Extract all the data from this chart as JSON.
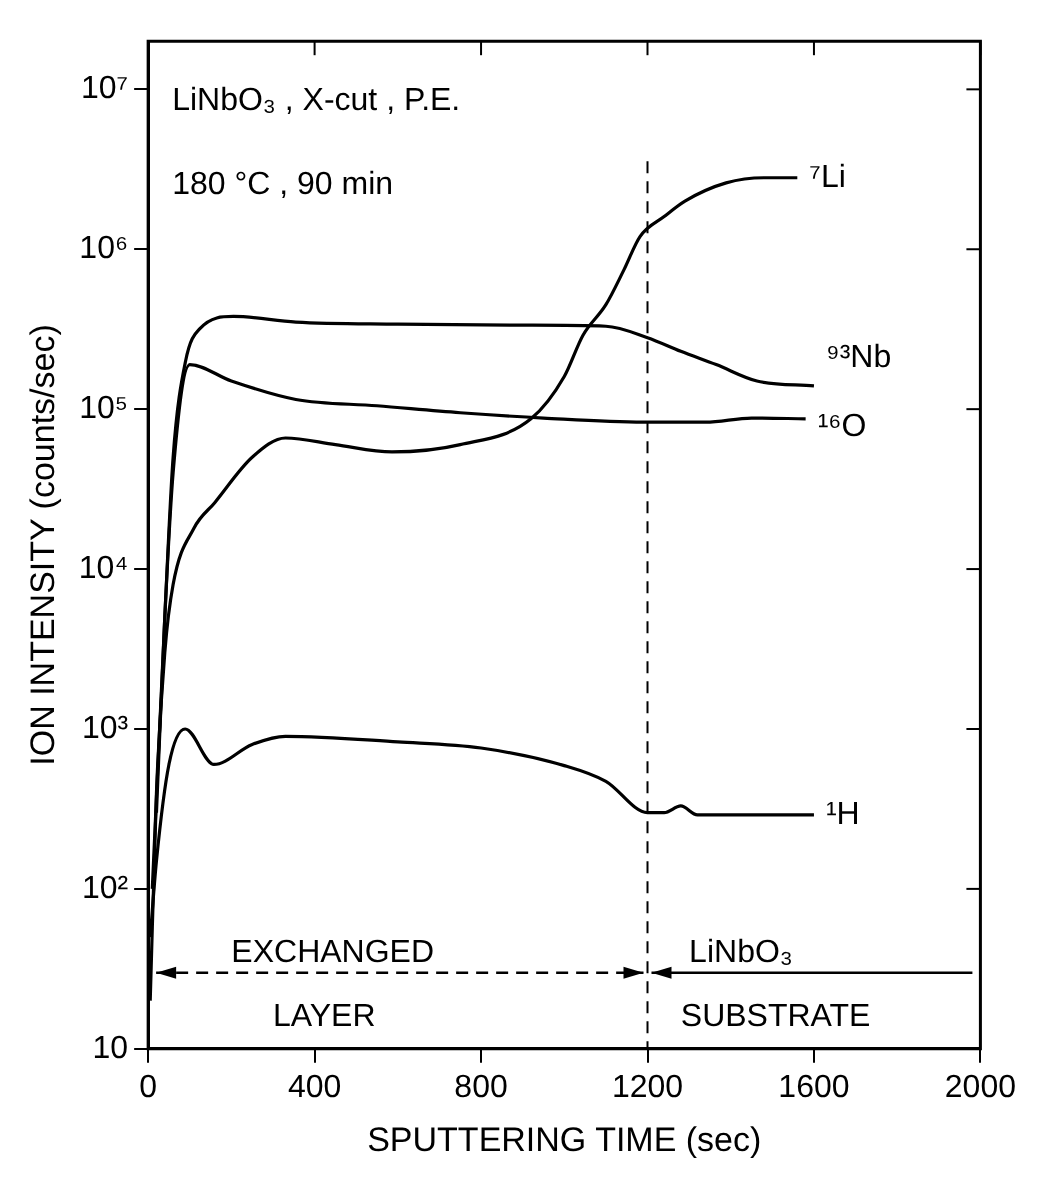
{
  "chart_data": {
    "type": "line",
    "xlabel": "SPUTTERING TIME (sec)",
    "ylabel": "ION INTENSITY (counts/sec)",
    "log": "y",
    "xlim": [
      0,
      2000
    ],
    "xticks": [
      0,
      400,
      800,
      1200,
      1600,
      2000
    ],
    "ylim": [
      10,
      20000000
    ],
    "yticks": [
      {
        "value": 10,
        "label": "10"
      },
      {
        "value": 100,
        "label": "10²"
      },
      {
        "value": 1000,
        "label": "10³"
      },
      {
        "value": 10000,
        "label": "10⁴"
      },
      {
        "value": 100000,
        "label": "10⁵"
      },
      {
        "value": 1000000,
        "label": "10⁶"
      },
      {
        "value": 10000000,
        "label": "10⁷"
      }
    ],
    "grid": false,
    "legend": false,
    "marker": "none",
    "line_style": "solid",
    "series": [
      {
        "name": "⁷Li",
        "color": "#000000",
        "x": [
          5,
          20,
          40,
          60,
          110,
          160,
          250,
          330,
          450,
          586,
          750,
          920,
          1000,
          1045,
          1100,
          1143,
          1182,
          1240,
          1290,
          1389,
          1480,
          1560
        ],
        "values": [
          20,
          400,
          3000,
          8000,
          18000,
          26000,
          50000,
          66000,
          60000,
          54000,
          60000,
          87000,
          160000,
          290000,
          450000,
          740000,
          1200000,
          1600000,
          2000000,
          2600000,
          2800000,
          2800000
        ]
      },
      {
        "name": "⁹³Nb",
        "color": "#000000",
        "x": [
          10,
          40,
          60,
          90,
          125,
          205,
          355,
          600,
          900,
          1100,
          1200,
          1280,
          1365,
          1463,
          1600
        ],
        "values": [
          100,
          5000,
          50000,
          200000,
          320000,
          380000,
          350000,
          340000,
          335000,
          330000,
          280000,
          230000,
          190000,
          150000,
          140000
        ]
      },
      {
        "name": "¹⁶O",
        "color": "#000000",
        "x": [
          20,
          40,
          60,
          100,
          200,
          355,
          550,
          750,
          950,
          1190,
          1340,
          1450,
          1580
        ],
        "values": [
          300,
          5000,
          40000,
          190000,
          150000,
          115000,
          105000,
          95000,
          88000,
          83000,
          83000,
          88000,
          87000
        ]
      },
      {
        "name": "¹H",
        "color": "#000000",
        "x": [
          5,
          20,
          50,
          89,
          158,
          250,
          330,
          600,
          800,
          1000,
          1100,
          1200,
          1240,
          1280,
          1320,
          1450,
          1600
        ],
        "values": [
          50,
          150,
          600,
          1000,
          600,
          800,
          900,
          830,
          760,
          590,
          470,
          300,
          300,
          330,
          290,
          290,
          290
        ]
      }
    ],
    "ref_lines": [
      {
        "axis": "x",
        "value": 1200,
        "line_style": "dashed"
      }
    ],
    "annotations": [
      "LiNbO₃ , X-cut , P.E.",
      "180 °C , 90 min",
      "EXCHANGED",
      "LAYER",
      "LiNbO₃",
      "SUBSTRATE"
    ]
  }
}
